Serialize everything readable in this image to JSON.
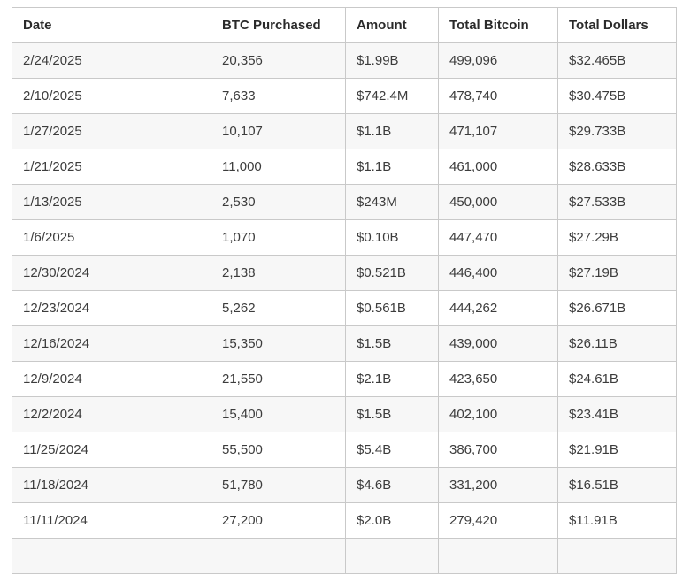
{
  "chart_data": {
    "type": "table",
    "columns": [
      "Date",
      "BTC Purchased",
      "Amount",
      "Total Bitcoin",
      "Total Dollars"
    ],
    "column_keys": [
      "date",
      "btc-purchased",
      "amount",
      "total-bitcoin",
      "total-dollars"
    ],
    "rows": [
      [
        "2/24/2025",
        "20,356",
        "$1.99B",
        "499,096",
        "$32.465B"
      ],
      [
        "2/10/2025",
        "7,633",
        "$742.4M",
        "478,740",
        "$30.475B"
      ],
      [
        "1/27/2025",
        "10,107",
        "$1.1B",
        "471,107",
        "$29.733B"
      ],
      [
        "1/21/2025",
        "11,000",
        "$1.1B",
        "461,000",
        "$28.633B"
      ],
      [
        "1/13/2025",
        "2,530",
        "$243M",
        "450,000",
        "$27.533B"
      ],
      [
        "1/6/2025",
        "1,070",
        "$0.10B",
        "447,470",
        "$27.29B"
      ],
      [
        "12/30/2024",
        "2,138",
        "$0.521B",
        "446,400",
        "$27.19B"
      ],
      [
        "12/23/2024",
        "5,262",
        "$0.561B",
        "444,262",
        "$26.671B"
      ],
      [
        "12/16/2024",
        "15,350",
        "$1.5B",
        "439,000",
        "$26.11B"
      ],
      [
        "12/9/2024",
        "21,550",
        "$2.1B",
        "423,650",
        "$24.61B"
      ],
      [
        "12/2/2024",
        "15,400",
        "$1.5B",
        "402,100",
        "$23.41B"
      ],
      [
        "11/25/2024",
        "55,500",
        "$5.4B",
        "386,700",
        "$21.91B"
      ],
      [
        "11/18/2024",
        "51,780",
        "$4.6B",
        "331,200",
        "$16.51B"
      ],
      [
        "11/11/2024",
        "27,200",
        "$2.0B",
        "279,420",
        "$11.91B"
      ]
    ]
  },
  "colors": {
    "background": "#ffffff",
    "border": "#c9c9c9",
    "row_stripe": "#f7f7f7",
    "row_plain": "#ffffff",
    "header_text": "#2b2b2b",
    "cell_text": "#3c3c3c"
  }
}
